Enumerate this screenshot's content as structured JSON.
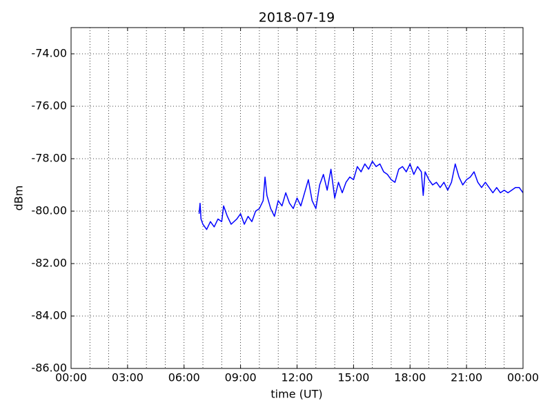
{
  "chart_data": {
    "type": "line",
    "title": "2018-07-19",
    "x_label": "time (UT)",
    "y_label": "dBm",
    "color": "#0000ff",
    "grid": true,
    "xlim": [
      0,
      24
    ],
    "ylim": [
      -86,
      -73
    ],
    "xticks": [
      {
        "value": 0,
        "label": "00:00"
      },
      {
        "value": 3,
        "label": "03:00"
      },
      {
        "value": 6,
        "label": "06:00"
      },
      {
        "value": 9,
        "label": "09:00"
      },
      {
        "value": 12,
        "label": "12:00"
      },
      {
        "value": 15,
        "label": "15:00"
      },
      {
        "value": 18,
        "label": "18:00"
      },
      {
        "value": 21,
        "label": "21:00"
      },
      {
        "value": 24,
        "label": "00:00"
      }
    ],
    "xminorticks": [
      1,
      2,
      4,
      5,
      7,
      8,
      10,
      11,
      13,
      14,
      16,
      17,
      19,
      20,
      22,
      23
    ],
    "yticks": [
      {
        "value": -86,
        "label": "-86.00"
      },
      {
        "value": -84,
        "label": "-84.00"
      },
      {
        "value": -82,
        "label": "-82.00"
      },
      {
        "value": -80,
        "label": "-80.00"
      },
      {
        "value": -78,
        "label": "-78.00"
      },
      {
        "value": -76,
        "label": "-76.00"
      },
      {
        "value": -74,
        "label": "-74.00"
      }
    ],
    "x": [
      6.8,
      6.85,
      6.9,
      7.0,
      7.2,
      7.4,
      7.6,
      7.8,
      8.0,
      8.1,
      8.3,
      8.5,
      8.8,
      9.0,
      9.2,
      9.4,
      9.6,
      9.8,
      10.0,
      10.2,
      10.3,
      10.4,
      10.6,
      10.8,
      11.0,
      11.2,
      11.4,
      11.6,
      11.8,
      12.0,
      12.2,
      12.4,
      12.6,
      12.8,
      13.0,
      13.2,
      13.4,
      13.6,
      13.8,
      14.0,
      14.2,
      14.4,
      14.6,
      14.8,
      15.0,
      15.2,
      15.4,
      15.6,
      15.8,
      16.0,
      16.2,
      16.4,
      16.6,
      16.8,
      17.0,
      17.2,
      17.4,
      17.6,
      17.8,
      18.0,
      18.2,
      18.4,
      18.6,
      18.7,
      18.8,
      19.0,
      19.2,
      19.4,
      19.6,
      19.8,
      20.0,
      20.2,
      20.4,
      20.6,
      20.8,
      21.0,
      21.2,
      21.4,
      21.6,
      21.8,
      22.0,
      22.2,
      22.4,
      22.6,
      22.8,
      23.0,
      23.2,
      23.4,
      23.6,
      23.8,
      24.0
    ],
    "values": [
      -80.1,
      -79.7,
      -80.3,
      -80.5,
      -80.7,
      -80.4,
      -80.6,
      -80.3,
      -80.4,
      -79.8,
      -80.2,
      -80.5,
      -80.3,
      -80.1,
      -80.5,
      -80.2,
      -80.4,
      -80.0,
      -79.9,
      -79.6,
      -78.7,
      -79.4,
      -79.9,
      -80.2,
      -79.6,
      -79.8,
      -79.3,
      -79.7,
      -79.9,
      -79.5,
      -79.8,
      -79.3,
      -78.8,
      -79.6,
      -79.9,
      -79.0,
      -78.6,
      -79.2,
      -78.4,
      -79.5,
      -78.9,
      -79.3,
      -78.9,
      -78.7,
      -78.8,
      -78.3,
      -78.5,
      -78.2,
      -78.4,
      -78.1,
      -78.3,
      -78.2,
      -78.5,
      -78.6,
      -78.8,
      -78.9,
      -78.4,
      -78.3,
      -78.5,
      -78.2,
      -78.6,
      -78.3,
      -78.5,
      -79.4,
      -78.5,
      -78.8,
      -79.0,
      -78.9,
      -79.1,
      -78.9,
      -79.2,
      -78.9,
      -78.2,
      -78.7,
      -79.0,
      -78.8,
      -78.7,
      -78.5,
      -78.9,
      -79.1,
      -78.9,
      -79.1,
      -79.3,
      -79.1,
      -79.3,
      -79.2,
      -79.3,
      -79.2,
      -79.1,
      -79.1,
      -79.3
    ]
  }
}
